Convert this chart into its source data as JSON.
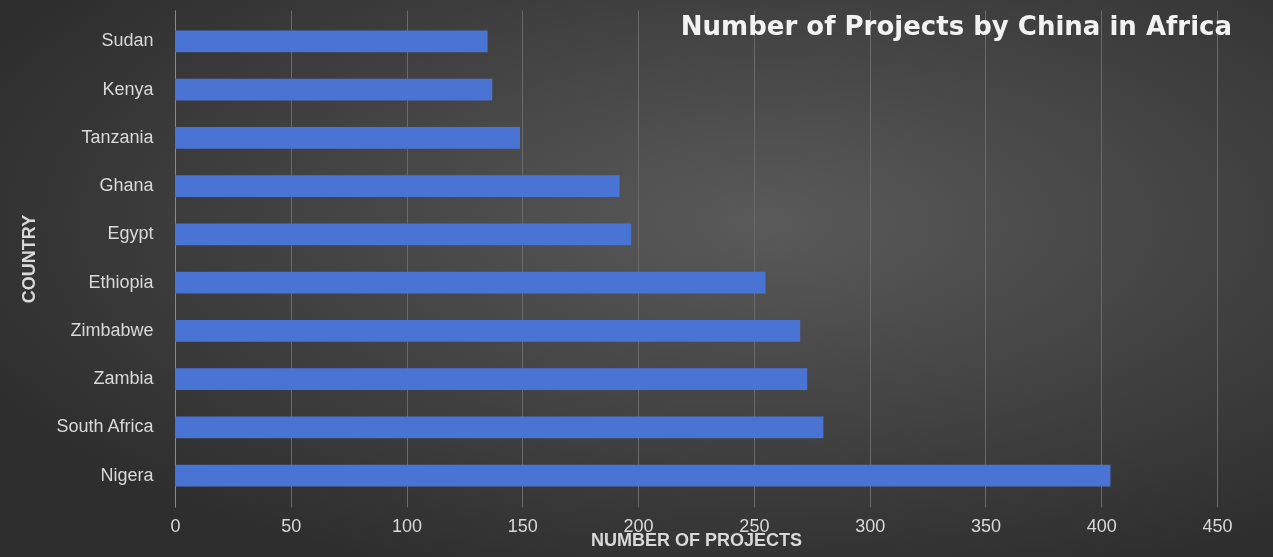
{
  "chart_data": {
    "type": "bar",
    "orientation": "horizontal",
    "title": "Number of Projects by China in Africa",
    "xlabel": "NUMBER OF PROJECTS",
    "ylabel": "COUNTRY",
    "categories": [
      "Sudan",
      "Kenya",
      "Tanzania",
      "Ghana",
      "Egypt",
      "Ethiopia",
      "Zimbabwe",
      "Zambia",
      "South Africa",
      "Nigera"
    ],
    "values": [
      135,
      137,
      149,
      192,
      197,
      255,
      270,
      273,
      280,
      404
    ],
    "color": "#4a74d4",
    "xlim": [
      0,
      450
    ],
    "xticks": [
      0,
      50,
      100,
      150,
      200,
      250,
      300,
      350,
      400,
      450
    ],
    "grid": "x"
  }
}
